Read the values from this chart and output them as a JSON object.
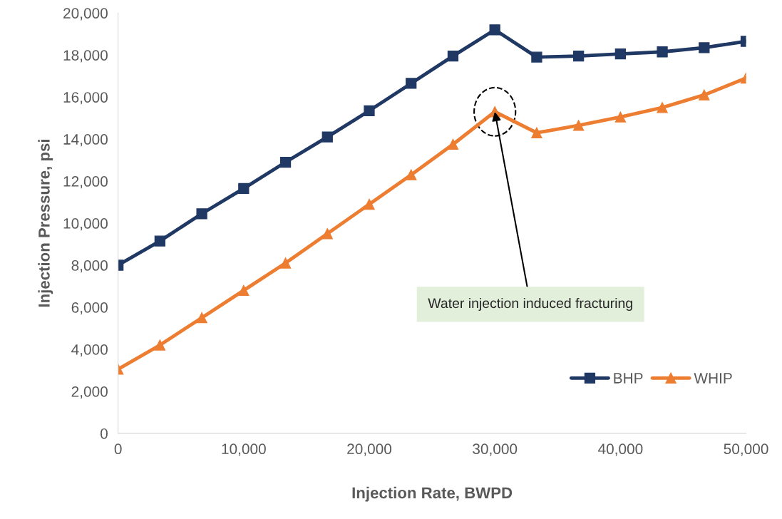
{
  "chart_data": {
    "type": "line",
    "xlabel": "Injection Rate, BWPD",
    "ylabel": "Injection Pressure, psi",
    "x": [
      0,
      3333,
      6667,
      10000,
      13333,
      16667,
      20000,
      23333,
      26667,
      30000,
      33333,
      36667,
      40000,
      43333,
      46667,
      50000
    ],
    "series": [
      {
        "name": "BHP",
        "color": "#203864",
        "marker": "square",
        "values": [
          8000,
          9150,
          10450,
          11650,
          12900,
          14100,
          15350,
          16650,
          17950,
          19200,
          17900,
          17950,
          18050,
          18150,
          18350,
          18650
        ]
      },
      {
        "name": "WHIP",
        "color": "#ed7d31",
        "marker": "triangle",
        "values": [
          3050,
          4200,
          5500,
          6800,
          8100,
          9500,
          10900,
          12300,
          13750,
          15300,
          14300,
          14650,
          15050,
          15500,
          16100,
          16900
        ]
      }
    ],
    "xlim": [
      0,
      50000
    ],
    "ylim": [
      0,
      20000
    ],
    "xticks": [
      {
        "value": 0,
        "label": "0"
      },
      {
        "value": 10000,
        "label": "10,000"
      },
      {
        "value": 20000,
        "label": "20,000"
      },
      {
        "value": 30000,
        "label": "30,000"
      },
      {
        "value": 40000,
        "label": "40,000"
      },
      {
        "value": 50000,
        "label": "50,000"
      }
    ],
    "yticks": [
      {
        "value": 0,
        "label": "0"
      },
      {
        "value": 2000,
        "label": "2,000"
      },
      {
        "value": 4000,
        "label": "4,000"
      },
      {
        "value": 6000,
        "label": "6,000"
      },
      {
        "value": 8000,
        "label": "8,000"
      },
      {
        "value": 10000,
        "label": "10,000"
      },
      {
        "value": 12000,
        "label": "12,000"
      },
      {
        "value": 14000,
        "label": "14,000"
      },
      {
        "value": 16000,
        "label": "16,000"
      },
      {
        "value": 18000,
        "label": "18,000"
      },
      {
        "value": 20000,
        "label": "20,000"
      }
    ],
    "grid": false,
    "legend": "bottom right",
    "line_style": "solid",
    "annotations": [
      {
        "text": "Water injection induced fracturing",
        "x": 30000,
        "y": 15300
      }
    ]
  }
}
